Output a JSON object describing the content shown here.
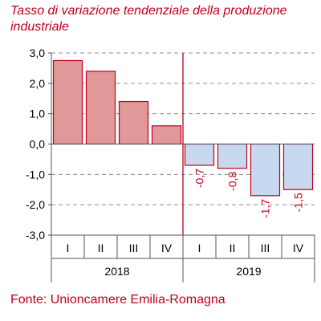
{
  "chart_data": {
    "type": "bar",
    "title": "Tasso di variazione tendenziale della produzione industriale",
    "categories": [
      "I",
      "II",
      "III",
      "IV",
      "I",
      "II",
      "III",
      "IV"
    ],
    "groups": [
      {
        "label": "2018",
        "count": 4
      },
      {
        "label": "2019",
        "count": 4
      }
    ],
    "values": [
      2.75,
      2.4,
      1.4,
      0.6,
      -0.7,
      -0.8,
      -1.7,
      -1.5
    ],
    "data_labels": [
      "",
      "",
      "",
      "",
      "-0,7",
      "-0,8",
      "-1,7",
      "-1,5"
    ],
    "bar_colors": [
      "#e09898",
      "#e09898",
      "#e09898",
      "#e09898",
      "#c6d9f1",
      "#c6d9f1",
      "#c6d9f1",
      "#c6d9f1"
    ],
    "bar_border_color": "#c0001a",
    "ylim": [
      -3.0,
      3.0
    ],
    "yticks": [
      3.0,
      2.0,
      1.0,
      0.0,
      -1.0,
      -2.0,
      -3.0
    ],
    "ytick_labels": [
      "3,0",
      "2,0",
      "1,0",
      "0,0",
      "-1,0",
      "-2,0",
      "-3,0"
    ],
    "xlabel": "",
    "ylabel": "",
    "grid": "horizontal dashed",
    "divider_color": "#c0001a"
  },
  "source_text": "Fonte: Unioncamere Emilia-Romagna"
}
